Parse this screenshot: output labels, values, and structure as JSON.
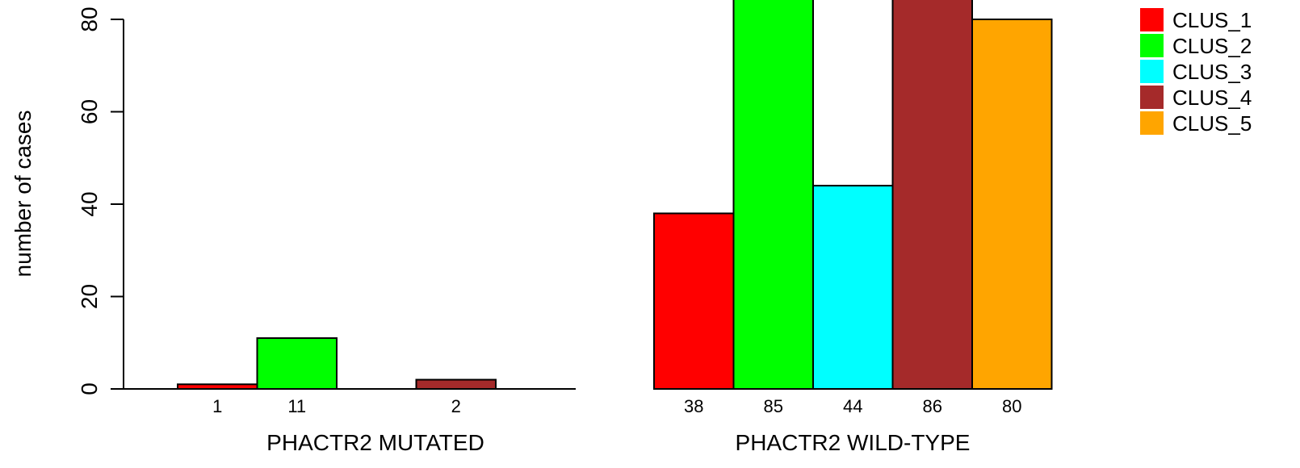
{
  "chart_data": {
    "type": "bar",
    "ylabel": "number of cases",
    "ylim": [
      0,
      80
    ],
    "yticks": [
      0,
      20,
      40,
      60,
      80
    ],
    "grid": false,
    "legend_position": "top-right",
    "series": [
      {
        "name": "CLUS_1",
        "color": "#ff0000"
      },
      {
        "name": "CLUS_2",
        "color": "#00ff00"
      },
      {
        "name": "CLUS_3",
        "color": "#00ffff"
      },
      {
        "name": "CLUS_4",
        "color": "#a52a2a"
      },
      {
        "name": "CLUS_5",
        "color": "#ffa500"
      }
    ],
    "groups": [
      {
        "label": "PHACTR2 MUTATED",
        "values": [
          1,
          11,
          0,
          2,
          0
        ],
        "value_labels": [
          "1",
          "11",
          "",
          "2",
          ""
        ]
      },
      {
        "label": "PHACTR2 WILD-TYPE",
        "values": [
          38,
          85,
          44,
          86,
          80
        ],
        "value_labels": [
          "38",
          "85",
          "44",
          "86",
          "80"
        ]
      }
    ]
  }
}
